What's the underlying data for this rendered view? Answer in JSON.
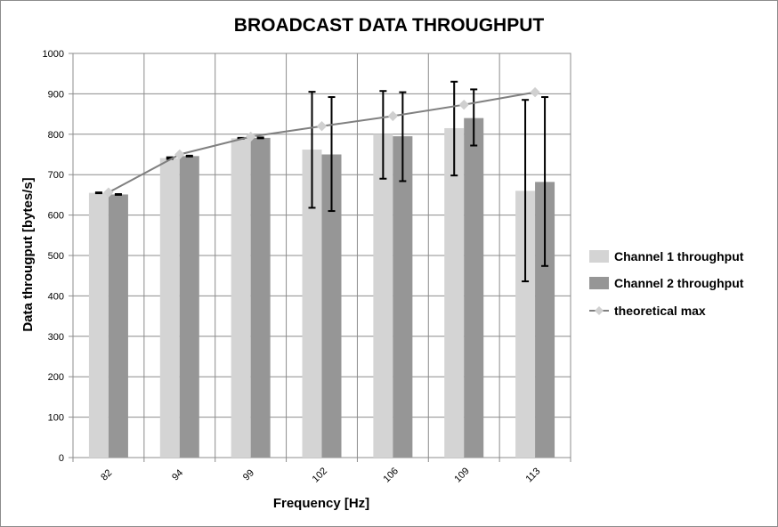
{
  "chart_data": {
    "type": "bar",
    "title": "BROADCAST DATA THROUGHPUT",
    "xlabel": "Frequency [Hz]",
    "ylabel": "Data througput [bytes/s]",
    "categories": [
      "82",
      "94",
      "99",
      "102",
      "106",
      "109",
      "113"
    ],
    "ylim": [
      0,
      1000
    ],
    "yticks": [
      "0",
      "100",
      "200",
      "300",
      "400",
      "500",
      "600",
      "700",
      "800",
      "900",
      "1000"
    ],
    "grid": true,
    "legend_position": "right",
    "series": [
      {
        "name": "Channel 1 throughput",
        "kind": "bar",
        "color": "#d4d4d4",
        "values": [
          655,
          741,
          790,
          762,
          800,
          815,
          660
        ],
        "error_low": [
          654,
          739,
          789,
          618,
          690,
          698,
          436
        ],
        "error_high": [
          656,
          743,
          791,
          905,
          907,
          930,
          885
        ]
      },
      {
        "name": "Channel 2 throughput",
        "kind": "bar",
        "color": "#969696",
        "values": [
          651,
          746,
          791,
          750,
          795,
          840,
          682
        ],
        "error_low": [
          650,
          745,
          790,
          610,
          684,
          772,
          474
        ],
        "error_high": [
          652,
          747,
          792,
          892,
          904,
          911,
          892
        ]
      },
      {
        "name": "theoretical max",
        "kind": "line",
        "color": "#808080",
        "marker_color": "#d0d0d0",
        "values": [
          656,
          750,
          794,
          820,
          845,
          873,
          904
        ]
      }
    ]
  }
}
